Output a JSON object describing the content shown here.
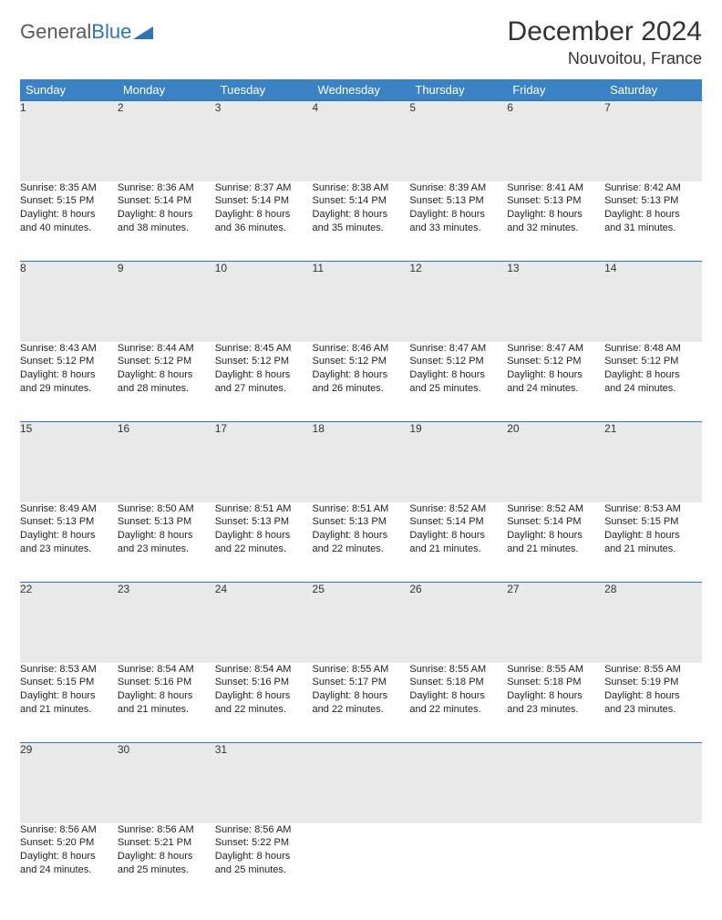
{
  "logo": {
    "word1": "General",
    "word2": "Blue"
  },
  "title": "December 2024",
  "location": "Nouvoitou, France",
  "colors": {
    "header_bg": "#3b82c4",
    "header_text": "#ffffff",
    "daynum_bg": "#e9e9e9",
    "row_divider": "#2f74b5",
    "logo_gray": "#595959",
    "logo_blue": "#2f74b5",
    "text": "#222222",
    "background": "#ffffff"
  },
  "weekdays": [
    "Sunday",
    "Monday",
    "Tuesday",
    "Wednesday",
    "Thursday",
    "Friday",
    "Saturday"
  ],
  "weeks": [
    [
      {
        "n": "1",
        "sunrise": "Sunrise: 8:35 AM",
        "sunset": "Sunset: 5:15 PM",
        "dl1": "Daylight: 8 hours",
        "dl2": "and 40 minutes."
      },
      {
        "n": "2",
        "sunrise": "Sunrise: 8:36 AM",
        "sunset": "Sunset: 5:14 PM",
        "dl1": "Daylight: 8 hours",
        "dl2": "and 38 minutes."
      },
      {
        "n": "3",
        "sunrise": "Sunrise: 8:37 AM",
        "sunset": "Sunset: 5:14 PM",
        "dl1": "Daylight: 8 hours",
        "dl2": "and 36 minutes."
      },
      {
        "n": "4",
        "sunrise": "Sunrise: 8:38 AM",
        "sunset": "Sunset: 5:14 PM",
        "dl1": "Daylight: 8 hours",
        "dl2": "and 35 minutes."
      },
      {
        "n": "5",
        "sunrise": "Sunrise: 8:39 AM",
        "sunset": "Sunset: 5:13 PM",
        "dl1": "Daylight: 8 hours",
        "dl2": "and 33 minutes."
      },
      {
        "n": "6",
        "sunrise": "Sunrise: 8:41 AM",
        "sunset": "Sunset: 5:13 PM",
        "dl1": "Daylight: 8 hours",
        "dl2": "and 32 minutes."
      },
      {
        "n": "7",
        "sunrise": "Sunrise: 8:42 AM",
        "sunset": "Sunset: 5:13 PM",
        "dl1": "Daylight: 8 hours",
        "dl2": "and 31 minutes."
      }
    ],
    [
      {
        "n": "8",
        "sunrise": "Sunrise: 8:43 AM",
        "sunset": "Sunset: 5:12 PM",
        "dl1": "Daylight: 8 hours",
        "dl2": "and 29 minutes."
      },
      {
        "n": "9",
        "sunrise": "Sunrise: 8:44 AM",
        "sunset": "Sunset: 5:12 PM",
        "dl1": "Daylight: 8 hours",
        "dl2": "and 28 minutes."
      },
      {
        "n": "10",
        "sunrise": "Sunrise: 8:45 AM",
        "sunset": "Sunset: 5:12 PM",
        "dl1": "Daylight: 8 hours",
        "dl2": "and 27 minutes."
      },
      {
        "n": "11",
        "sunrise": "Sunrise: 8:46 AM",
        "sunset": "Sunset: 5:12 PM",
        "dl1": "Daylight: 8 hours",
        "dl2": "and 26 minutes."
      },
      {
        "n": "12",
        "sunrise": "Sunrise: 8:47 AM",
        "sunset": "Sunset: 5:12 PM",
        "dl1": "Daylight: 8 hours",
        "dl2": "and 25 minutes."
      },
      {
        "n": "13",
        "sunrise": "Sunrise: 8:47 AM",
        "sunset": "Sunset: 5:12 PM",
        "dl1": "Daylight: 8 hours",
        "dl2": "and 24 minutes."
      },
      {
        "n": "14",
        "sunrise": "Sunrise: 8:48 AM",
        "sunset": "Sunset: 5:12 PM",
        "dl1": "Daylight: 8 hours",
        "dl2": "and 24 minutes."
      }
    ],
    [
      {
        "n": "15",
        "sunrise": "Sunrise: 8:49 AM",
        "sunset": "Sunset: 5:13 PM",
        "dl1": "Daylight: 8 hours",
        "dl2": "and 23 minutes."
      },
      {
        "n": "16",
        "sunrise": "Sunrise: 8:50 AM",
        "sunset": "Sunset: 5:13 PM",
        "dl1": "Daylight: 8 hours",
        "dl2": "and 23 minutes."
      },
      {
        "n": "17",
        "sunrise": "Sunrise: 8:51 AM",
        "sunset": "Sunset: 5:13 PM",
        "dl1": "Daylight: 8 hours",
        "dl2": "and 22 minutes."
      },
      {
        "n": "18",
        "sunrise": "Sunrise: 8:51 AM",
        "sunset": "Sunset: 5:13 PM",
        "dl1": "Daylight: 8 hours",
        "dl2": "and 22 minutes."
      },
      {
        "n": "19",
        "sunrise": "Sunrise: 8:52 AM",
        "sunset": "Sunset: 5:14 PM",
        "dl1": "Daylight: 8 hours",
        "dl2": "and 21 minutes."
      },
      {
        "n": "20",
        "sunrise": "Sunrise: 8:52 AM",
        "sunset": "Sunset: 5:14 PM",
        "dl1": "Daylight: 8 hours",
        "dl2": "and 21 minutes."
      },
      {
        "n": "21",
        "sunrise": "Sunrise: 8:53 AM",
        "sunset": "Sunset: 5:15 PM",
        "dl1": "Daylight: 8 hours",
        "dl2": "and 21 minutes."
      }
    ],
    [
      {
        "n": "22",
        "sunrise": "Sunrise: 8:53 AM",
        "sunset": "Sunset: 5:15 PM",
        "dl1": "Daylight: 8 hours",
        "dl2": "and 21 minutes."
      },
      {
        "n": "23",
        "sunrise": "Sunrise: 8:54 AM",
        "sunset": "Sunset: 5:16 PM",
        "dl1": "Daylight: 8 hours",
        "dl2": "and 21 minutes."
      },
      {
        "n": "24",
        "sunrise": "Sunrise: 8:54 AM",
        "sunset": "Sunset: 5:16 PM",
        "dl1": "Daylight: 8 hours",
        "dl2": "and 22 minutes."
      },
      {
        "n": "25",
        "sunrise": "Sunrise: 8:55 AM",
        "sunset": "Sunset: 5:17 PM",
        "dl1": "Daylight: 8 hours",
        "dl2": "and 22 minutes."
      },
      {
        "n": "26",
        "sunrise": "Sunrise: 8:55 AM",
        "sunset": "Sunset: 5:18 PM",
        "dl1": "Daylight: 8 hours",
        "dl2": "and 22 minutes."
      },
      {
        "n": "27",
        "sunrise": "Sunrise: 8:55 AM",
        "sunset": "Sunset: 5:18 PM",
        "dl1": "Daylight: 8 hours",
        "dl2": "and 23 minutes."
      },
      {
        "n": "28",
        "sunrise": "Sunrise: 8:55 AM",
        "sunset": "Sunset: 5:19 PM",
        "dl1": "Daylight: 8 hours",
        "dl2": "and 23 minutes."
      }
    ],
    [
      {
        "n": "29",
        "sunrise": "Sunrise: 8:56 AM",
        "sunset": "Sunset: 5:20 PM",
        "dl1": "Daylight: 8 hours",
        "dl2": "and 24 minutes."
      },
      {
        "n": "30",
        "sunrise": "Sunrise: 8:56 AM",
        "sunset": "Sunset: 5:21 PM",
        "dl1": "Daylight: 8 hours",
        "dl2": "and 25 minutes."
      },
      {
        "n": "31",
        "sunrise": "Sunrise: 8:56 AM",
        "sunset": "Sunset: 5:22 PM",
        "dl1": "Daylight: 8 hours",
        "dl2": "and 25 minutes."
      },
      {
        "n": "",
        "sunrise": "",
        "sunset": "",
        "dl1": "",
        "dl2": ""
      },
      {
        "n": "",
        "sunrise": "",
        "sunset": "",
        "dl1": "",
        "dl2": ""
      },
      {
        "n": "",
        "sunrise": "",
        "sunset": "",
        "dl1": "",
        "dl2": ""
      },
      {
        "n": "",
        "sunrise": "",
        "sunset": "",
        "dl1": "",
        "dl2": ""
      }
    ]
  ]
}
